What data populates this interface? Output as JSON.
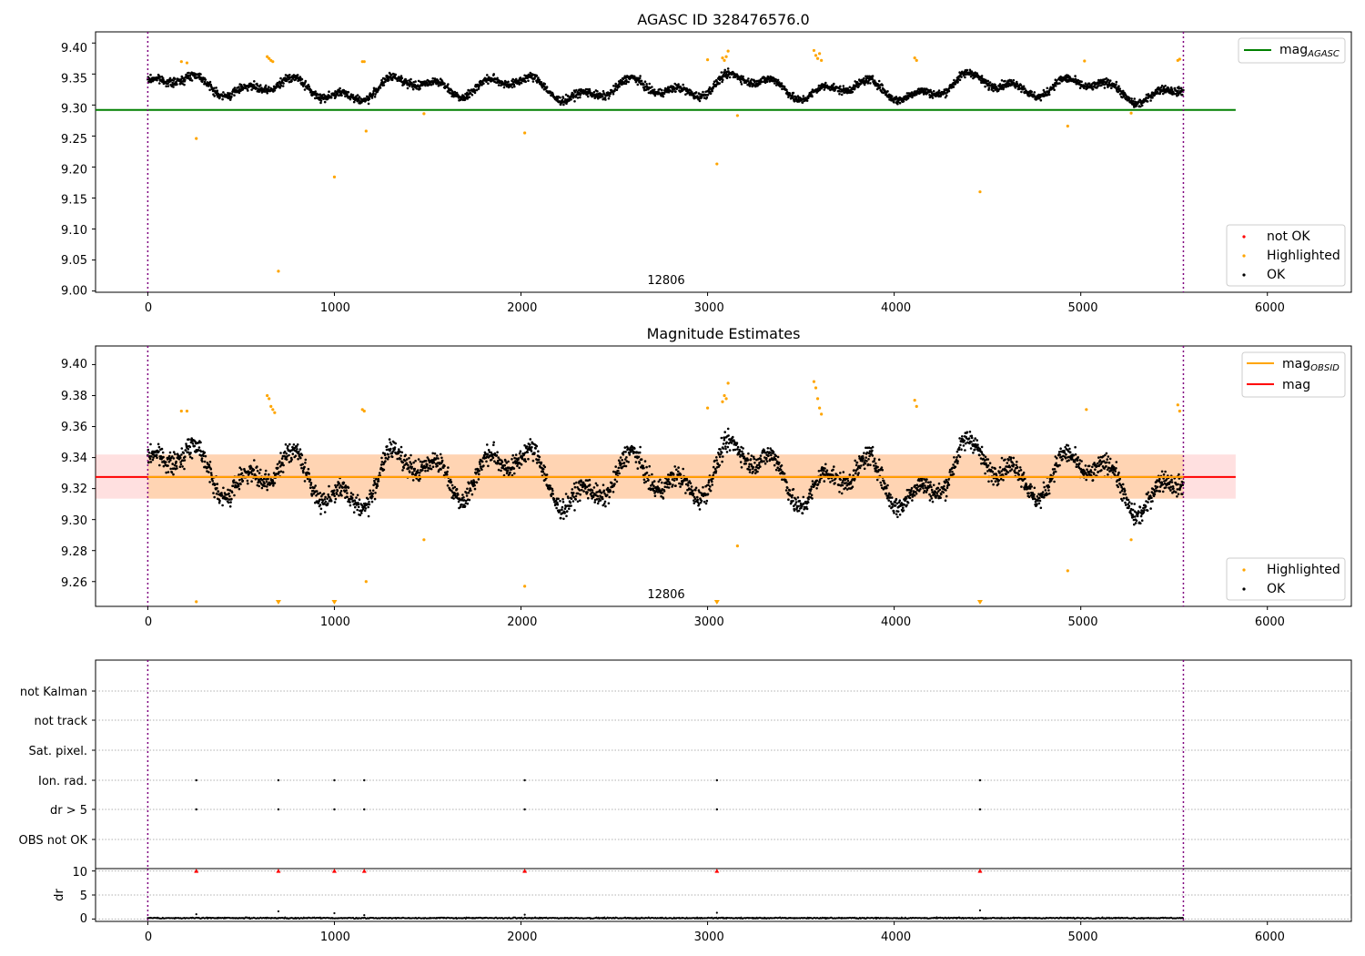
{
  "chart_data": [
    {
      "type": "scatter",
      "title": "AGASC ID 328476576.0",
      "xlim": [
        -280,
        6450
      ],
      "ylim": [
        8.998,
        9.418
      ],
      "x_ticks": [
        "0",
        "1000",
        "2000",
        "3000",
        "4000",
        "5000",
        "6000"
      ],
      "y_ticks": [
        "9.00",
        "9.05",
        "9.10",
        "9.15",
        "9.20",
        "9.25",
        "9.30",
        "9.35",
        "9.40"
      ],
      "observation_boundaries": [
        0,
        5550
      ],
      "observation_labels": [
        {
          "text": "12806",
          "x": 2770,
          "y": 9.005
        }
      ],
      "mag_agasc": {
        "value": 9.292,
        "x_range": [
          -280,
          5830
        ]
      },
      "legend_top": [
        {
          "label": "mag",
          "subscript": "AGASC",
          "color": "#008000"
        }
      ],
      "legend_bottom": [
        {
          "label": "not OK",
          "color": "#ff0000"
        },
        {
          "label": "Highlighted",
          "color": "#ffa500"
        },
        {
          "label": "OK",
          "color": "#000000"
        }
      ],
      "highlighted_points": [
        [
          180,
          9.37
        ],
        [
          210,
          9.368
        ],
        [
          260,
          9.246
        ],
        [
          640,
          9.378
        ],
        [
          650,
          9.375
        ],
        [
          660,
          9.372
        ],
        [
          670,
          9.37
        ],
        [
          700,
          9.032
        ],
        [
          1000,
          9.184
        ],
        [
          1150,
          9.37
        ],
        [
          1160,
          9.37
        ],
        [
          1170,
          9.258
        ],
        [
          1480,
          9.286
        ],
        [
          2020,
          9.255
        ],
        [
          3000,
          9.373
        ],
        [
          3050,
          9.205
        ],
        [
          3080,
          9.376
        ],
        [
          3090,
          9.372
        ],
        [
          3100,
          9.378
        ],
        [
          3110,
          9.387
        ],
        [
          3160,
          9.283
        ],
        [
          3570,
          9.388
        ],
        [
          3580,
          9.38
        ],
        [
          3590,
          9.375
        ],
        [
          3600,
          9.383
        ],
        [
          3610,
          9.372
        ],
        [
          4110,
          9.376
        ],
        [
          4120,
          9.372
        ],
        [
          4460,
          9.16
        ],
        [
          4930,
          9.266
        ],
        [
          5020,
          9.371
        ],
        [
          5270,
          9.287
        ],
        [
          5520,
          9.372
        ],
        [
          5530,
          9.374
        ]
      ],
      "ok_series": {
        "x_range": [
          0,
          5550
        ],
        "mean": 9.328,
        "amplitude": 0.03
      }
    },
    {
      "type": "scatter",
      "title": "Magnitude Estimates",
      "xlim": [
        -280,
        6450
      ],
      "ylim": [
        9.244,
        9.412
      ],
      "x_ticks": [
        "0",
        "1000",
        "2000",
        "3000",
        "4000",
        "5000",
        "6000"
      ],
      "y_ticks": [
        "9.26",
        "9.28",
        "9.30",
        "9.32",
        "9.34",
        "9.36",
        "9.38",
        "9.40"
      ],
      "observation_boundaries": [
        0,
        5550
      ],
      "observation_labels": [
        {
          "text": "12806",
          "x": 2770,
          "y": 9.248
        }
      ],
      "mag": {
        "value": 9.3275,
        "band": [
          9.3135,
          9.342
        ],
        "x_range": [
          -280,
          5830
        ]
      },
      "mag_obsid": {
        "value": 9.3275,
        "band": [
          9.3135,
          9.342
        ],
        "x_range": [
          0,
          5550
        ]
      },
      "legend_top": [
        {
          "label": "mag",
          "subscript": "OBSID",
          "color": "#ffa500"
        },
        {
          "label": "mag",
          "subscript": "",
          "color": "#ff0000"
        }
      ],
      "legend_bottom": [
        {
          "label": "Highlighted",
          "color": "#ffa500"
        },
        {
          "label": "OK",
          "color": "#000000"
        }
      ],
      "offscale_markers_x": [
        700,
        1000,
        3050,
        4460
      ],
      "highlighted_points": [
        [
          180,
          9.37
        ],
        [
          210,
          9.37
        ],
        [
          260,
          9.247
        ],
        [
          640,
          9.38
        ],
        [
          650,
          9.378
        ],
        [
          660,
          9.373
        ],
        [
          670,
          9.371
        ],
        [
          680,
          9.369
        ],
        [
          1150,
          9.371
        ],
        [
          1160,
          9.37
        ],
        [
          1170,
          9.26
        ],
        [
          1480,
          9.287
        ],
        [
          2020,
          9.257
        ],
        [
          3000,
          9.372
        ],
        [
          3080,
          9.376
        ],
        [
          3090,
          9.38
        ],
        [
          3100,
          9.378
        ],
        [
          3110,
          9.388
        ],
        [
          3160,
          9.283
        ],
        [
          3570,
          9.389
        ],
        [
          3580,
          9.385
        ],
        [
          3590,
          9.378
        ],
        [
          3600,
          9.372
        ],
        [
          3610,
          9.368
        ],
        [
          4110,
          9.377
        ],
        [
          4120,
          9.373
        ],
        [
          4930,
          9.267
        ],
        [
          5030,
          9.371
        ],
        [
          5270,
          9.287
        ],
        [
          5520,
          9.374
        ],
        [
          5530,
          9.37
        ]
      ],
      "ok_series": {
        "x_range": [
          0,
          5550
        ],
        "mean": 9.328,
        "amplitude": 0.03
      }
    },
    {
      "type": "scatter",
      "title": "",
      "xlim": [
        -280,
        6450
      ],
      "x_ticks": [
        "0",
        "1000",
        "2000",
        "3000",
        "4000",
        "5000",
        "6000"
      ],
      "flag_rows": [
        "not Kalman",
        "not track",
        "Sat. pixel.",
        "Ion. rad.",
        "dr > 5",
        "OBS not OK"
      ],
      "flag_points": {
        "Ion. rad.": [
          260,
          700,
          1000,
          1160,
          2020,
          3050,
          4460
        ],
        "dr > 5": [
          260,
          700,
          1000,
          1160,
          2020,
          3050,
          4460
        ]
      },
      "observation_boundaries": [
        0,
        5550
      ]
    },
    {
      "type": "scatter",
      "title": "",
      "xlim": [
        -280,
        6450
      ],
      "ylim": [
        -0.5,
        10.5
      ],
      "ylabel": "dr",
      "x_ticks": [
        "0",
        "1000",
        "2000",
        "3000",
        "4000",
        "5000",
        "6000"
      ],
      "y_ticks": [
        "0",
        "5",
        "10"
      ],
      "clipped_markers_x": [
        260,
        700,
        1000,
        1160,
        2020,
        3050,
        4460
      ],
      "outlier_points": [
        [
          260,
          1.0
        ],
        [
          700,
          1.6
        ],
        [
          1000,
          1.2
        ],
        [
          1160,
          0.8
        ],
        [
          2020,
          0.9
        ],
        [
          3050,
          1.3
        ],
        [
          4460,
          1.8
        ]
      ],
      "dr_series": {
        "x_range": [
          0,
          5550
        ],
        "mean": 0.2
      },
      "observation_boundaries": [
        0,
        5550
      ]
    }
  ]
}
